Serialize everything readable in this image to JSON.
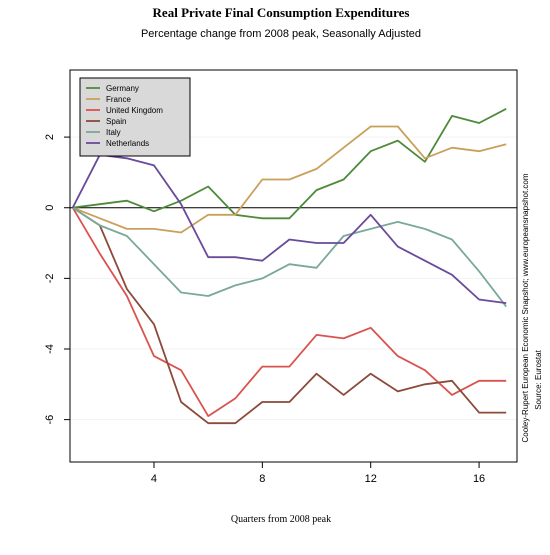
{
  "chart_data": {
    "type": "line",
    "title": "Real Private Final Consumption Expenditures",
    "subtitle": "Percentage change from 2008 peak, Seasonally Adjusted",
    "xlabel": "Quarters from 2008 peak",
    "ylabel": "",
    "side_text": "Cooley-Rupert European Economic Snapshot; www.europeansnapshot.com",
    "source": "Source: Eurostat",
    "xlim": [
      0.9,
      17.4
    ],
    "ylim": [
      -7.2,
      3.9
    ],
    "x_ticks": [
      4,
      8,
      12,
      16
    ],
    "y_ticks": [
      2,
      0,
      -2,
      -4,
      -6
    ],
    "grid": false,
    "zero_line": true,
    "legend_position": "top-left",
    "x": [
      1,
      2,
      3,
      4,
      5,
      6,
      7,
      8,
      9,
      10,
      11,
      12,
      13,
      14,
      15,
      16,
      17
    ],
    "series": [
      {
        "name": "Germany",
        "color": "#4e8a3a",
        "values": [
          0,
          0.1,
          0.2,
          -0.1,
          0.2,
          0.6,
          -0.2,
          -0.3,
          -0.3,
          0.5,
          0.8,
          1.6,
          1.9,
          1.3,
          2.6,
          2.4,
          2.8
        ]
      },
      {
        "name": "France",
        "color": "#c9a05a",
        "values": [
          0,
          -0.3,
          -0.6,
          -0.6,
          -0.7,
          -0.2,
          -0.2,
          0.8,
          0.8,
          1.1,
          1.7,
          2.3,
          2.3,
          1.4,
          1.7,
          1.6,
          1.8
        ]
      },
      {
        "name": "United Kingdom",
        "color": "#d9534f",
        "values": [
          0,
          -1.3,
          -2.5,
          -4.2,
          -4.6,
          -5.9,
          -5.4,
          -4.5,
          -4.5,
          -3.6,
          -3.7,
          -3.4,
          -4.2,
          -4.6,
          -5.3,
          -4.9,
          -4.9
        ]
      },
      {
        "name": "Spain",
        "color": "#8b4a3a",
        "values": [
          0,
          -0.5,
          -2.3,
          -3.3,
          -5.5,
          -6.1,
          -6.1,
          -5.5,
          -5.5,
          -4.7,
          -5.3,
          -4.7,
          -5.2,
          -5.0,
          -4.9,
          -5.8,
          -5.8
        ]
      },
      {
        "name": "Italy",
        "color": "#7aa89a",
        "values": [
          0,
          -0.5,
          -0.8,
          -1.6,
          -2.4,
          -2.5,
          -2.2,
          -2.0,
          -1.6,
          -1.7,
          -0.8,
          -0.6,
          -0.4,
          -0.6,
          -0.9,
          -1.8,
          -2.8
        ]
      },
      {
        "name": "Netherlands",
        "color": "#6a4a9a",
        "values": [
          0,
          1.5,
          1.4,
          1.2,
          0.1,
          -1.4,
          -1.4,
          -1.5,
          -0.9,
          -1.0,
          -1.0,
          -0.2,
          -1.1,
          -1.5,
          -1.9,
          -2.6,
          -2.7
        ]
      }
    ]
  }
}
